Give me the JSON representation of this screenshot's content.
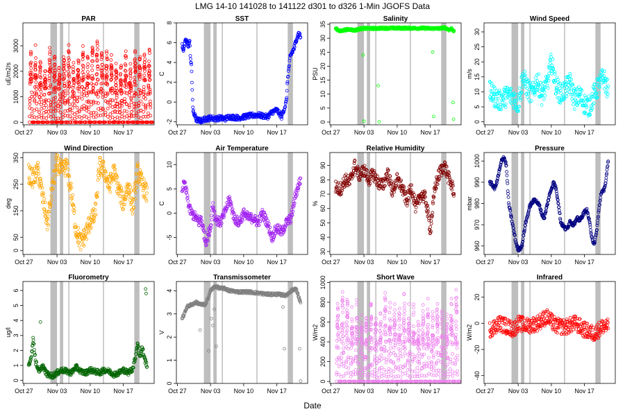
{
  "figure": {
    "title": "LMG  14-10    141028 to 141122    d301 to d326   1-Min  JGOFS Data",
    "xlabel": "Date"
  },
  "chart_data": [
    {
      "type": "scatter",
      "title": "PAR",
      "ylabel": "uE/m2/s",
      "color": "#ff0000",
      "ylim": [
        -100,
        3900
      ],
      "yticks": [
        0,
        1000,
        2000,
        3000
      ],
      "xticks": [
        "Oct 27",
        "Nov 03",
        "Nov 10",
        "Nov 17"
      ],
      "pattern": "diurnal",
      "base": 0,
      "peak": 2800,
      "spread": 900
    },
    {
      "type": "scatter",
      "title": "SST",
      "ylabel": "C",
      "color": "#0000ff",
      "ylim": [
        -2.3,
        8
      ],
      "yticks": [
        -2,
        0,
        2,
        4,
        6,
        8
      ],
      "xticks": [
        "Oct 27",
        "Nov 03",
        "Nov 10",
        "Nov 17"
      ],
      "pattern": "line",
      "noise": 0.25,
      "series": {
        "x": [
          28,
          28.3,
          28.8,
          29.3,
          29.6,
          29.8,
          30.0,
          30.3,
          30.8,
          31.0,
          31.2,
          32.0,
          32.5,
          33.0,
          34.0,
          35.0,
          36.0,
          37.0,
          38.0,
          40.0,
          42.0,
          44.0,
          46.0,
          47.0,
          48.0,
          49.0,
          50.0,
          50.3,
          50.8,
          51.2,
          51.7,
          52.2,
          52.7,
          53.0
        ],
        "y": [
          5.8,
          5.3,
          6.3,
          5.7,
          6.2,
          4.2,
          3.5,
          -1.0,
          -1.5,
          -1.8,
          -1.8,
          -1.9,
          -1.8,
          -1.7,
          -1.6,
          -1.7,
          -1.6,
          -1.7,
          -1.5,
          -1.6,
          -1.4,
          -1.3,
          -1.5,
          -1.0,
          -0.8,
          -1.5,
          0.0,
          2.5,
          4.5,
          5.0,
          5.5,
          6.5,
          7.0,
          6.5
        ]
      }
    },
    {
      "type": "scatter",
      "title": "Salinity",
      "ylabel": "PSU",
      "color": "#00ff00",
      "ylim": [
        -1,
        35.5
      ],
      "yticks": [
        0,
        5,
        10,
        15,
        20,
        25,
        30,
        35
      ],
      "xticks": [
        "Oct 27",
        "Nov 03",
        "Nov 10",
        "Nov 17"
      ],
      "pattern": "line",
      "noise": 0.4,
      "series": {
        "x": [
          28,
          29,
          30,
          31,
          32,
          33,
          34,
          36,
          38,
          40,
          42,
          44,
          46,
          48,
          50,
          51,
          52,
          52.5,
          53
        ],
        "y": [
          33.5,
          32.5,
          33.0,
          33.2,
          32.8,
          33.3,
          33.5,
          33.5,
          33.6,
          33.6,
          33.6,
          33.6,
          33.6,
          33.5,
          33.5,
          33.8,
          33.0,
          33.5,
          32.5
        ]
      },
      "outliers": {
        "x": [
          33.8,
          34.0,
          37.0,
          37.2,
          48.5,
          48.7,
          52.8,
          52.9
        ],
        "y": [
          24,
          0.3,
          13,
          0.1,
          25,
          2,
          7,
          1
        ]
      }
    },
    {
      "type": "scatter",
      "title": "Wind Speed",
      "ylabel": "m/s",
      "color": "#00ffff",
      "ylim": [
        -1,
        33
      ],
      "yticks": [
        0,
        5,
        10,
        15,
        20,
        25,
        30
      ],
      "xticks": [
        "Oct 27",
        "Nov 03",
        "Nov 10",
        "Nov 17"
      ],
      "pattern": "line",
      "noise": 3.5,
      "series": {
        "x": [
          28,
          30,
          32,
          33,
          34,
          35,
          36,
          37,
          38,
          39,
          40,
          41,
          42,
          43,
          44,
          45,
          46,
          47,
          48,
          49,
          50,
          51,
          52,
          53
        ],
        "y": [
          10,
          7,
          9,
          8,
          6,
          15,
          11,
          9,
          14,
          9,
          12,
          20,
          12,
          9,
          11,
          13,
          7,
          9,
          6,
          5,
          9,
          12,
          15,
          10
        ]
      }
    },
    {
      "type": "scatter",
      "title": "Wind Direction",
      "ylabel": "deg",
      "color": "#ffa500",
      "ylim": [
        -15,
        370
      ],
      "yticks": [
        0,
        50,
        150,
        250,
        350
      ],
      "xticks": [
        "Oct 27",
        "Nov 03",
        "Nov 10",
        "Nov 17"
      ],
      "pattern": "line",
      "noise": 35,
      "series": {
        "x": [
          28,
          29,
          30,
          31,
          32,
          33,
          34,
          35,
          36,
          37,
          38,
          39,
          40,
          41,
          42,
          43,
          44,
          45,
          46,
          47,
          48,
          49,
          50,
          51,
          52,
          53
        ],
        "y": [
          290,
          270,
          300,
          200,
          100,
          240,
          330,
          300,
          320,
          220,
          80,
          30,
          60,
          110,
          130,
          320,
          300,
          240,
          300,
          230,
          180,
          250,
          160,
          300,
          250,
          210
        ]
      }
    },
    {
      "type": "scatter",
      "title": "Air Temperature",
      "ylabel": "C",
      "color": "#a020f0",
      "ylim": [
        -8.5,
        12.5
      ],
      "yticks": [
        -5,
        0,
        5,
        10
      ],
      "xticks": [
        "Oct 27",
        "Nov 03",
        "Nov 10",
        "Nov 17"
      ],
      "pattern": "line",
      "noise": 1.0,
      "series": {
        "x": [
          28,
          28.5,
          29,
          29.5,
          30,
          31,
          31.5,
          32,
          33,
          34,
          34.5,
          35,
          36,
          37,
          38,
          39,
          40,
          41,
          42,
          43,
          44,
          45,
          46,
          47,
          48,
          49,
          50,
          51,
          52,
          53
        ],
        "y": [
          5,
          6,
          4,
          1,
          0,
          -1,
          -2,
          -1,
          -6,
          -3,
          2,
          -1,
          -2,
          0,
          3,
          -1,
          -2,
          0,
          -1,
          -1,
          -2,
          0,
          -2,
          -5,
          -3,
          -4,
          -2,
          -1,
          4,
          7
        ]
      }
    },
    {
      "type": "scatter",
      "title": "Relative Humidity",
      "ylabel": "%",
      "color": "#800000",
      "ylim": [
        28,
        99
      ],
      "yticks": [
        30,
        40,
        50,
        60,
        70,
        80,
        90
      ],
      "xticks": [
        "Oct 27",
        "Nov 03",
        "Nov 10",
        "Nov 17"
      ],
      "pattern": "line",
      "noise": 4.5,
      "series": {
        "x": [
          28,
          29,
          30,
          31,
          32,
          33,
          34,
          35,
          36,
          37,
          38,
          39,
          40,
          41,
          42,
          43,
          44,
          45,
          46,
          47,
          48,
          49,
          50,
          51,
          52,
          53
        ],
        "y": [
          75,
          73,
          80,
          78,
          90,
          83,
          87,
          80,
          84,
          78,
          76,
          85,
          72,
          80,
          75,
          65,
          75,
          60,
          70,
          67,
          45,
          75,
          85,
          90,
          80,
          72
        ]
      }
    },
    {
      "type": "scatter",
      "title": "Pressure",
      "ylabel": "mbar",
      "color": "#000080",
      "ylim": [
        956,
        1004
      ],
      "yticks": [
        960,
        970,
        980,
        990,
        1000
      ],
      "xticks": [
        "Oct 27",
        "Nov 03",
        "Nov 10",
        "Nov 17"
      ],
      "pattern": "line",
      "noise": 0.8,
      "series": {
        "x": [
          28,
          28.5,
          29,
          29.5,
          30,
          30.5,
          31,
          31.5,
          32,
          33,
          33.5,
          34,
          34.8,
          35.5,
          36.5,
          37.5,
          38.5,
          39,
          39.5,
          40,
          40.5,
          41,
          41.5,
          42,
          42.5,
          43,
          44,
          44.5,
          45,
          45.5,
          46,
          46.5,
          47,
          47.5,
          48,
          48.5,
          49,
          49.5,
          50,
          50.5,
          51,
          51.5,
          52,
          52.5,
          53
        ],
        "y": [
          990,
          989,
          987,
          990,
          995,
          1000,
          1002,
          998,
          980,
          968,
          962,
          958,
          960,
          970,
          979,
          982,
          979,
          975,
          973,
          978,
          983,
          987,
          990,
          987,
          980,
          971,
          968,
          969,
          972,
          970,
          971,
          973,
          972,
          974,
          976,
          977,
          972,
          965,
          960,
          966,
          976,
          985,
          986,
          990,
          1000
        ]
      }
    },
    {
      "type": "scatter",
      "title": "Fluorometry",
      "ylabel": "ug/l",
      "color": "#006400",
      "ylim": [
        -0.2,
        6.6
      ],
      "yticks": [
        0,
        1,
        2,
        3,
        4,
        5,
        6
      ],
      "xticks": [
        "Oct 27",
        "Nov 03",
        "Nov 10",
        "Nov 17"
      ],
      "pattern": "line",
      "noise": 0.18,
      "series": {
        "x": [
          28,
          28.5,
          29,
          29.5,
          30,
          30.5,
          31,
          31.5,
          32,
          33,
          34,
          35,
          36,
          37,
          38,
          39,
          40,
          41,
          42,
          43,
          44,
          45,
          46,
          47,
          48,
          49,
          50,
          50.5,
          51,
          51.5,
          52,
          52.5,
          53
        ],
        "y": [
          1.0,
          1.5,
          2.8,
          1.2,
          0.8,
          0.6,
          1.0,
          0.6,
          0.4,
          0.3,
          0.5,
          0.7,
          0.6,
          0.5,
          0.9,
          0.6,
          0.5,
          0.7,
          0.6,
          0.5,
          0.7,
          0.6,
          0.4,
          0.5,
          0.7,
          0.5,
          0.8,
          1.5,
          2.5,
          1.6,
          2.2,
          1.4,
          1.0
        ]
      },
      "outliers": {
        "x": [
          30.5,
          52.7,
          52.8
        ],
        "y": [
          3.9,
          6.1,
          5.8
        ]
      }
    },
    {
      "type": "scatter",
      "title": "Transmissometer",
      "ylabel": "V",
      "color": "#808080",
      "ylim": [
        0,
        4.4
      ],
      "yticks": [
        0,
        1,
        2,
        3,
        4
      ],
      "xticks": [
        "Oct 27",
        "Nov 03",
        "Nov 10",
        "Nov 17"
      ],
      "pattern": "line",
      "noise": 0.06,
      "series": {
        "x": [
          28,
          28.5,
          29,
          30,
          31,
          32,
          33,
          34,
          35,
          36,
          37,
          38,
          40,
          42,
          44,
          46,
          48,
          50,
          51,
          52,
          52.5,
          53
        ],
        "y": [
          2.8,
          3.0,
          3.3,
          3.4,
          3.5,
          3.4,
          3.4,
          4.0,
          4.2,
          4.1,
          4.1,
          4.0,
          3.95,
          3.95,
          3.9,
          3.85,
          3.85,
          3.8,
          4.0,
          4.1,
          3.8,
          3.5
        ]
      },
      "outliers": {
        "x": [
          31.8,
          33.6,
          34.2,
          34.5,
          34.8,
          35.2,
          49.3,
          49.6,
          52.8,
          53.0
        ],
        "y": [
          2.3,
          1.4,
          2.8,
          2.5,
          3.2,
          1.6,
          3.3,
          1.5,
          1.5,
          0.1
        ]
      }
    },
    {
      "type": "scatter",
      "title": "Short Wave",
      "ylabel": "W/m2",
      "color": "#ee82ee",
      "ylim": [
        -20,
        1010
      ],
      "yticks": [
        0,
        200,
        400,
        600,
        800,
        1000
      ],
      "xticks": [
        "Oct 27",
        "Nov 03",
        "Nov 10",
        "Nov 17"
      ],
      "pattern": "diurnal",
      "base": 0,
      "peak": 820,
      "spread": 250
    },
    {
      "type": "scatter",
      "title": "Infrared",
      "ylabel": "W/m2",
      "color": "#ff0000",
      "ylim": [
        -46,
        32
      ],
      "yticks": [
        -40,
        -20,
        0,
        20
      ],
      "xticks": [
        "Oct 27",
        "Nov 03",
        "Nov 10",
        "Nov 17"
      ],
      "pattern": "line",
      "noise": 6,
      "series": {
        "x": [
          28,
          30,
          32,
          33,
          34,
          36,
          38,
          40,
          42,
          44,
          46,
          48,
          50,
          52,
          53
        ],
        "y": [
          -5,
          0,
          -3,
          -5,
          0,
          -2,
          0,
          5,
          -2,
          -3,
          0,
          -5,
          -8,
          -2,
          -3
        ]
      }
    }
  ]
}
